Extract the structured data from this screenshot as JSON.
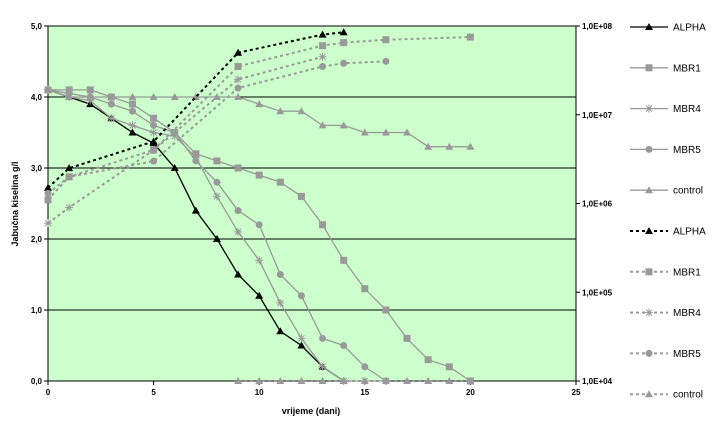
{
  "chart_data": {
    "type": "line",
    "xlabel": "vrijeme (dani)",
    "ylabel": "Jabučna kiselina g/l",
    "xlim": [
      0,
      25
    ],
    "ylim_left": [
      0,
      5
    ],
    "ylim_right_log": [
      10000,
      100000000
    ],
    "x_ticks": [
      "0",
      "5",
      "10",
      "15",
      "20",
      "25"
    ],
    "y_left_ticks": [
      "0,0",
      "1,0",
      "2,0",
      "3,0",
      "4,0",
      "5,0"
    ],
    "y_right_ticks": [
      "1,0E+04",
      "1,0E+05",
      "1,0E+06",
      "1,0E+07",
      "1,0E+08"
    ],
    "plot_background": "#ccffcc",
    "grid": "horizontal",
    "legend_position": "right",
    "series": [
      {
        "name": "ALPHA",
        "axis": "left",
        "style": "solid",
        "marker": "triangle",
        "color": "#000000",
        "x": [
          0,
          1,
          2,
          3,
          4,
          5,
          6,
          7,
          8,
          9,
          10,
          11,
          12,
          13,
          14
        ],
        "y": [
          4.1,
          4.0,
          3.9,
          3.7,
          3.5,
          3.35,
          3.0,
          2.4,
          2.0,
          1.5,
          1.2,
          0.7,
          0.5,
          0.2,
          0.0
        ]
      },
      {
        "name": "MBR1",
        "axis": "left",
        "style": "solid",
        "marker": "square",
        "color": "#999999",
        "x": [
          0,
          1,
          2,
          3,
          4,
          5,
          6,
          7,
          8,
          9,
          10,
          11,
          12,
          13,
          14,
          15,
          16,
          17,
          18,
          19,
          20
        ],
        "y": [
          4.1,
          4.1,
          4.1,
          4.0,
          3.9,
          3.7,
          3.5,
          3.2,
          3.1,
          3.0,
          2.9,
          2.8,
          2.6,
          2.2,
          1.7,
          1.3,
          1.0,
          0.6,
          0.3,
          0.2,
          0.0
        ]
      },
      {
        "name": "MBR4",
        "axis": "left",
        "style": "solid",
        "marker": "asterisk",
        "color": "#999999",
        "x": [
          0,
          1,
          2,
          3,
          4,
          5,
          6,
          7,
          8,
          9,
          10,
          11,
          12,
          13,
          14,
          15,
          16
        ],
        "y": [
          4.1,
          4.0,
          3.95,
          3.7,
          3.6,
          3.5,
          3.45,
          3.15,
          2.6,
          2.1,
          1.7,
          1.1,
          0.6,
          0.2,
          0.0,
          0.0,
          0.0
        ]
      },
      {
        "name": "MBR5",
        "axis": "left",
        "style": "solid",
        "marker": "circle",
        "color": "#999999",
        "x": [
          0,
          1,
          2,
          3,
          4,
          5,
          6,
          7,
          8,
          9,
          10,
          11,
          12,
          13,
          14,
          15,
          16
        ],
        "y": [
          4.1,
          4.05,
          4.0,
          3.9,
          3.8,
          3.6,
          3.5,
          3.1,
          2.8,
          2.4,
          2.2,
          1.5,
          1.2,
          0.6,
          0.5,
          0.2,
          0.0
        ]
      },
      {
        "name": "control",
        "axis": "left",
        "style": "solid",
        "marker": "triangle",
        "color": "#999999",
        "x": [
          0,
          1,
          2,
          3,
          4,
          5,
          6,
          7,
          8,
          9,
          10,
          11,
          12,
          13,
          14,
          15,
          16,
          17,
          18,
          19,
          20
        ],
        "y": [
          4.1,
          4.0,
          4.0,
          4.0,
          4.0,
          4.0,
          4.0,
          4.0,
          4.0,
          4.0,
          3.9,
          3.8,
          3.8,
          3.6,
          3.6,
          3.5,
          3.5,
          3.5,
          3.3,
          3.3,
          3.3
        ]
      },
      {
        "name": "ALPHA",
        "axis": "right",
        "style": "dashed",
        "marker": "triangle",
        "color": "#000000",
        "x": [
          0,
          1,
          5,
          9,
          13,
          14
        ],
        "y": [
          1500000,
          2500000,
          5000000,
          50000000,
          80000000,
          85000000
        ]
      },
      {
        "name": "MBR1",
        "axis": "right",
        "style": "dashed",
        "marker": "square",
        "color": "#999999",
        "x": [
          0,
          1,
          5,
          9,
          13,
          14,
          16,
          20
        ],
        "y": [
          1100000,
          2000000,
          4000000,
          35000000,
          60000000,
          65000000,
          70000000,
          75000000
        ]
      },
      {
        "name": "MBR4",
        "axis": "right",
        "style": "dashed",
        "marker": "asterisk",
        "color": "#999999",
        "x": [
          0,
          1,
          5,
          9,
          13
        ],
        "y": [
          600000,
          900000,
          4000000,
          25000000,
          45000000
        ]
      },
      {
        "name": "MBR5",
        "axis": "right",
        "style": "dashed",
        "marker": "circle",
        "color": "#999999",
        "x": [
          0,
          1,
          5,
          9,
          13,
          14,
          16
        ],
        "y": [
          1300000,
          2000000,
          3000000,
          20000000,
          35000000,
          38000000,
          40000000
        ]
      },
      {
        "name": "control",
        "axis": "right",
        "style": "dashed",
        "marker": "triangle",
        "color": "#999999",
        "x": [
          9,
          10,
          11,
          12,
          13,
          14,
          15,
          16,
          17,
          18,
          19,
          20
        ],
        "y": [
          10000,
          10000,
          10000,
          10000,
          10000,
          10000,
          10000,
          10000,
          10000,
          10000,
          10000,
          10000
        ]
      }
    ]
  }
}
